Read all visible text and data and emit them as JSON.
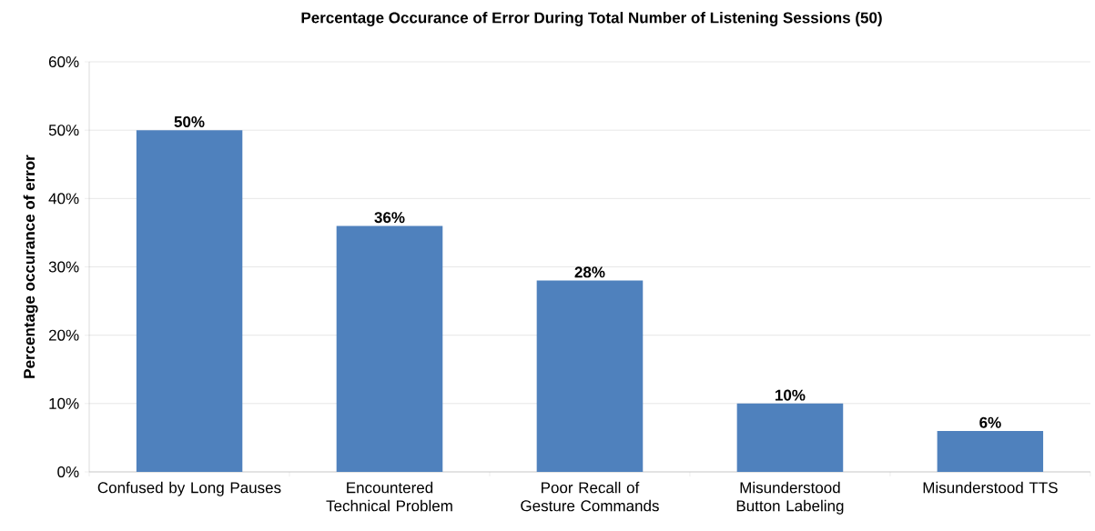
{
  "chart_data": {
    "type": "bar",
    "title": "Percentage Occurance of Error During Total Number of Listening Sessions (50)",
    "ylabel": "Percentage occurance of error",
    "categories": [
      "Confused by Long Pauses",
      "Encountered Technical Problem",
      "Poor Recall of Gesture Commands",
      "Misunderstood Button Labeling",
      "Misunderstood TTS"
    ],
    "values": [
      50,
      36,
      28,
      10,
      6
    ],
    "value_labels": [
      "50%",
      "36%",
      "28%",
      "10%",
      "6%"
    ],
    "color": "#4f81bd",
    "ylim": [
      0,
      60
    ],
    "yticks": [
      {
        "value": 0,
        "label": "0%"
      },
      {
        "value": 10,
        "label": "10%"
      },
      {
        "value": 20,
        "label": "20%"
      },
      {
        "value": 30,
        "label": "30%"
      },
      {
        "value": 40,
        "label": "40%"
      },
      {
        "value": 50,
        "label": "50%"
      },
      {
        "value": 60,
        "label": "60%"
      }
    ],
    "grid": "y"
  }
}
